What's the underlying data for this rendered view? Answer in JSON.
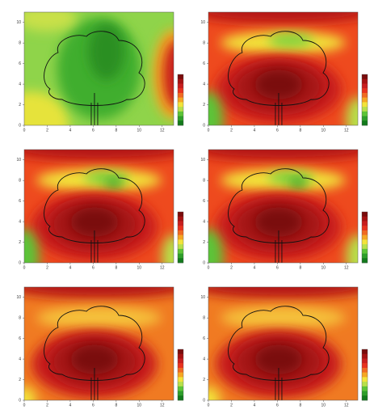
{
  "chart_data": [
    {
      "type": "contour",
      "xlim": [
        0,
        13
      ],
      "ylim": [
        0,
        11
      ],
      "xticks": [
        0,
        2,
        4,
        6,
        8,
        10,
        12
      ],
      "yticks": [
        0,
        2,
        4,
        6,
        8,
        10
      ]
    },
    {
      "type": "contour",
      "xlim": [
        0,
        13
      ],
      "ylim": [
        0,
        11
      ],
      "xticks": [
        0,
        2,
        4,
        6,
        8,
        10,
        12
      ],
      "yticks": [
        0,
        2,
        4,
        6,
        8,
        10
      ]
    },
    {
      "type": "contour",
      "xlim": [
        0,
        13
      ],
      "ylim": [
        0,
        11
      ],
      "xticks": [
        0,
        2,
        4,
        6,
        8,
        10,
        12
      ],
      "yticks": [
        0,
        2,
        4,
        6,
        8,
        10
      ]
    },
    {
      "type": "contour",
      "xlim": [
        0,
        13
      ],
      "ylim": [
        0,
        11
      ],
      "xticks": [
        0,
        2,
        4,
        6,
        8,
        10,
        12
      ],
      "yticks": [
        0,
        2,
        4,
        6,
        8,
        10
      ]
    },
    {
      "type": "contour",
      "xlim": [
        0,
        13
      ],
      "ylim": [
        0,
        11
      ],
      "xticks": [
        0,
        2,
        4,
        6,
        8,
        10,
        12
      ],
      "yticks": [
        0,
        2,
        4,
        6,
        8,
        10
      ]
    },
    {
      "type": "contour",
      "xlim": [
        0,
        13
      ],
      "ylim": [
        0,
        11
      ],
      "xticks": [
        0,
        2,
        4,
        6,
        8,
        10,
        12
      ],
      "yticks": [
        0,
        2,
        4,
        6,
        8,
        10
      ]
    }
  ]
}
